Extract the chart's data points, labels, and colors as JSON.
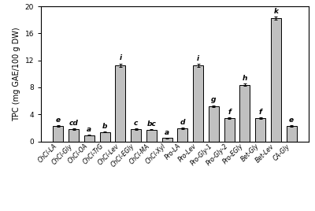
{
  "categories": [
    "ChCl-LA",
    "ChCl-Gly",
    "ChCl-OA",
    "ChCl-TrG",
    "ChCl-Lev",
    "ChCl-EGly",
    "ChCl-MA",
    "ChCl-Xyl",
    "Pro-LA",
    "Pro-Lev",
    "Pro-Gly-1",
    "Pro-Gly-2",
    "Pro-EGly",
    "Bet-Gly",
    "Bet-Lev",
    "CA-Gly"
  ],
  "values": [
    2.3,
    1.8,
    0.9,
    1.4,
    11.3,
    1.8,
    1.75,
    0.5,
    1.95,
    11.3,
    5.2,
    3.4,
    8.4,
    3.4,
    18.3,
    2.3
  ],
  "errors": [
    0.12,
    0.08,
    0.06,
    0.07,
    0.25,
    0.09,
    0.08,
    0.05,
    0.12,
    0.22,
    0.16,
    0.11,
    0.16,
    0.12,
    0.22,
    0.12
  ],
  "labels": [
    "e",
    "cd",
    "a",
    "b",
    "i",
    "c",
    "bc",
    "a",
    "d",
    "i",
    "g",
    "f",
    "h",
    "f",
    "k",
    "e"
  ],
  "bar_color": "#c0c0c0",
  "bar_edge_color": "#000000",
  "ylabel": "TPC (mg GAE/100 g DW)",
  "ylim": [
    0,
    20
  ],
  "yticks": [
    0,
    4,
    8,
    12,
    16,
    20
  ],
  "figure_bg": "#ffffff",
  "label_fontsize": 5.5,
  "ylabel_fontsize": 7.0,
  "tick_fontsize": 6.5,
  "letter_fontsize": 6.5
}
